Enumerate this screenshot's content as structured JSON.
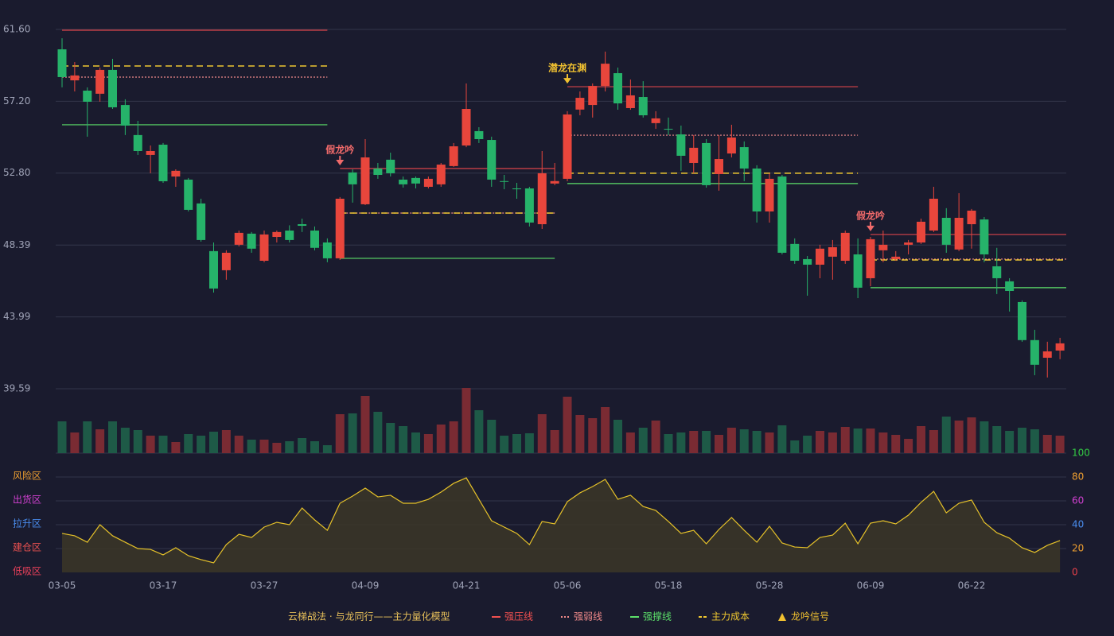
{
  "chart_data": {
    "type": "candlestick",
    "up_color": "#e8463c",
    "down_color": "#26b36a",
    "categories": [
      "03-05",
      null,
      null,
      null,
      null,
      null,
      null,
      null,
      "03-17",
      null,
      null,
      null,
      null,
      null,
      null,
      null,
      "03-27",
      null,
      null,
      null,
      null,
      null,
      null,
      null,
      "04-09",
      null,
      null,
      null,
      null,
      null,
      null,
      null,
      "04-21",
      null,
      null,
      null,
      null,
      null,
      null,
      null,
      "05-06",
      null,
      null,
      null,
      null,
      null,
      null,
      null,
      "05-18",
      null,
      null,
      null,
      null,
      null,
      null,
      null,
      "05-28",
      null,
      null,
      null,
      null,
      null,
      null,
      null,
      "06-09",
      null,
      null,
      null,
      null,
      null,
      null,
      null,
      "06-22",
      null,
      null,
      null,
      null,
      null,
      null,
      null
    ],
    "ohlc": [
      [
        60.38,
        61.06,
        58.05,
        58.68
      ],
      [
        58.48,
        59.6,
        57.8,
        58.78
      ],
      [
        57.85,
        58.05,
        55.03,
        57.17
      ],
      [
        57.66,
        59.26,
        57.17,
        59.12
      ],
      [
        59.12,
        59.8,
        56.73,
        56.83
      ],
      [
        56.97,
        57.32,
        55.13,
        55.71
      ],
      [
        55.13,
        56.0,
        53.91,
        54.15
      ],
      [
        53.91,
        54.49,
        52.79,
        54.15
      ],
      [
        54.54,
        54.64,
        52.2,
        52.3
      ],
      [
        52.59,
        53.03,
        51.96,
        52.94
      ],
      [
        52.4,
        52.5,
        50.45,
        50.55
      ],
      [
        50.94,
        51.23,
        48.6,
        48.7
      ],
      [
        48.02,
        48.55,
        45.48,
        45.73
      ],
      [
        46.85,
        48.07,
        46.27,
        47.92
      ],
      [
        48.41,
        49.28,
        48.31,
        49.14
      ],
      [
        49.09,
        49.19,
        47.92,
        48.17
      ],
      [
        47.43,
        49.28,
        47.34,
        49.04
      ],
      [
        48.89,
        49.28,
        48.55,
        49.19
      ],
      [
        49.28,
        49.6,
        48.55,
        48.7
      ],
      [
        49.67,
        50.01,
        49.19,
        49.57
      ],
      [
        49.28,
        49.53,
        48.07,
        48.22
      ],
      [
        48.55,
        48.8,
        47.34,
        47.58
      ],
      [
        47.58,
        51.33,
        47.48,
        51.23
      ],
      [
        52.84,
        53.03,
        50.99,
        52.11
      ],
      [
        50.89,
        54.88,
        50.84,
        53.76
      ],
      [
        53.08,
        53.42,
        52.45,
        52.69
      ],
      [
        53.62,
        54.05,
        52.59,
        52.79
      ],
      [
        52.4,
        52.59,
        51.91,
        52.11
      ],
      [
        52.5,
        52.59,
        51.86,
        52.16
      ],
      [
        51.96,
        52.59,
        51.86,
        52.45
      ],
      [
        52.11,
        53.42,
        51.96,
        53.32
      ],
      [
        53.23,
        54.64,
        53.18,
        54.44
      ],
      [
        54.49,
        58.29,
        54.39,
        56.73
      ],
      [
        55.37,
        55.61,
        54.64,
        54.88
      ],
      [
        54.83,
        55.03,
        51.96,
        52.4
      ],
      [
        52.31,
        52.69,
        51.81,
        52.26
      ],
      [
        51.86,
        52.2,
        51.23,
        51.81
      ],
      [
        51.86,
        51.96,
        49.53,
        49.77
      ],
      [
        49.67,
        54.15,
        49.38,
        52.79
      ],
      [
        52.16,
        53.42,
        52.06,
        52.31
      ],
      [
        52.45,
        56.59,
        52.3,
        56.39
      ],
      [
        56.69,
        57.8,
        56.34,
        57.41
      ],
      [
        56.97,
        58.29,
        56.2,
        58.14
      ],
      [
        58.14,
        60.24,
        57.8,
        59.5
      ],
      [
        58.92,
        59.26,
        56.68,
        57.07
      ],
      [
        56.78,
        58.53,
        56.68,
        57.56
      ],
      [
        57.46,
        58.43,
        56.2,
        56.34
      ],
      [
        55.86,
        56.59,
        55.51,
        56.15
      ],
      [
        55.51,
        56.2,
        55.13,
        55.47
      ],
      [
        55.17,
        55.71,
        52.94,
        53.86
      ],
      [
        53.42,
        55.13,
        52.79,
        54.35
      ],
      [
        54.64,
        54.88,
        51.91,
        52.06
      ],
      [
        52.74,
        55.13,
        51.72,
        53.66
      ],
      [
        54.0,
        55.76,
        53.76,
        54.98
      ],
      [
        54.39,
        54.74,
        52.3,
        53.08
      ],
      [
        53.08,
        53.28,
        49.77,
        50.45
      ],
      [
        50.45,
        52.79,
        49.77,
        52.45
      ],
      [
        52.59,
        52.69,
        47.82,
        47.92
      ],
      [
        48.46,
        48.8,
        47.24,
        47.43
      ],
      [
        47.53,
        47.72,
        45.29,
        47.19
      ],
      [
        47.19,
        48.41,
        46.36,
        48.17
      ],
      [
        47.68,
        48.7,
        46.27,
        48.26
      ],
      [
        47.43,
        49.28,
        47.24,
        49.14
      ],
      [
        47.82,
        48.8,
        45.14,
        45.78
      ],
      [
        46.36,
        48.89,
        45.87,
        48.75
      ],
      [
        48.07,
        49.28,
        47.34,
        48.41
      ],
      [
        47.53,
        48.02,
        47.43,
        47.68
      ],
      [
        48.41,
        48.7,
        47.82,
        48.55
      ],
      [
        48.55,
        50.01,
        48.46,
        49.82
      ],
      [
        49.28,
        51.96,
        49.19,
        51.23
      ],
      [
        50.06,
        50.65,
        47.92,
        48.41
      ],
      [
        48.12,
        51.57,
        48.02,
        50.06
      ],
      [
        49.67,
        50.6,
        48.17,
        50.5
      ],
      [
        49.96,
        50.11,
        47.34,
        47.82
      ],
      [
        47.09,
        48.22,
        45.39,
        46.36
      ],
      [
        46.17,
        46.36,
        44.32,
        45.58
      ],
      [
        44.9,
        45.0,
        42.47,
        42.57
      ],
      [
        42.57,
        43.2,
        40.42,
        41.06
      ],
      [
        41.49,
        42.47,
        40.28,
        41.88
      ],
      [
        41.93,
        42.71,
        41.4,
        42.37
      ]
    ],
    "ylim": [
      39.59,
      61.6
    ],
    "yticks": [
      39.59,
      43.99,
      48.39,
      {
        "value": 52.8,
        "label": "52.80"
      },
      {
        "value": 57.2,
        "label": "57.20"
      },
      {
        "value": 61.6,
        "label": "61.60"
      }
    ],
    "grid": true,
    "levels": [
      {
        "from": 0,
        "to": 21,
        "pressure": 61.55,
        "weak": 58.68,
        "cost": 59.36,
        "support": 55.76
      },
      {
        "from": 22,
        "to": 39,
        "pressure": 53.08,
        "weak": 50.35,
        "cost": 50.35,
        "support": 47.58
      },
      {
        "from": 40,
        "to": 63,
        "pressure": 58.09,
        "weak": 55.12,
        "cost": 52.79,
        "support": 52.16
      },
      {
        "from": 64,
        "to": 79,
        "pressure": 49.04,
        "weak": 47.53,
        "cost": 47.48,
        "support": 45.78
      }
    ],
    "level_colors": {
      "pressure": "#d9434a",
      "weak": "#f08a8a",
      "cost": "#f0c830",
      "support": "#5ce06a"
    },
    "signals": [
      {
        "index": 22,
        "label": "假龙吟",
        "color": "#f06a6a"
      },
      {
        "index": 40,
        "label": "潜龙在渊",
        "color": "#f0c030"
      },
      {
        "index": 64,
        "label": "假龙吟",
        "color": "#f06a6a"
      }
    ],
    "volume": {
      "up_color": "#7a2b33",
      "down_color": "#1e5a47",
      "values": [
        40,
        26,
        40,
        30,
        40,
        32,
        29,
        22,
        22,
        14,
        24,
        22,
        27,
        29,
        22,
        17,
        17,
        13,
        15,
        19,
        15,
        10,
        49,
        50,
        72,
        52,
        38,
        34,
        26,
        24,
        36,
        40,
        82,
        54,
        42,
        22,
        24,
        25,
        49,
        29,
        71,
        48,
        44,
        58,
        42,
        26,
        32,
        41,
        24,
        26,
        28,
        28,
        23,
        32,
        30,
        28,
        26,
        35,
        16,
        22,
        28,
        26,
        33,
        31,
        31,
        26,
        23,
        18,
        34,
        29,
        46,
        41,
        45,
        40,
        34,
        28,
        32,
        30,
        23,
        22
      ]
    },
    "indicator": {
      "color": "#e6c229",
      "fill": "#3a3528",
      "ylim": [
        0,
        100
      ],
      "yticks": [
        0,
        20,
        40,
        60,
        80,
        100
      ],
      "tick_colors": [
        "#e8404a",
        "#f0a030",
        "#4a8ef0",
        "#d040d0",
        "#f0a030",
        "#33cc44"
      ],
      "zones": [
        {
          "label": "低吸区",
          "value": 0,
          "color": "#e8405a"
        },
        {
          "label": "建仓区",
          "value": 20,
          "color": "#e85050"
        },
        {
          "label": "拉升区",
          "value": 40,
          "color": "#4a8ef0"
        },
        {
          "label": "出货区",
          "value": 60,
          "color": "#d040d0"
        },
        {
          "label": "风险区",
          "value": 80,
          "color": "#f0a030"
        }
      ],
      "values": [
        32.7,
        30.7,
        25.3,
        40,
        30.7,
        25.3,
        20,
        19.3,
        14.7,
        20.7,
        14,
        10.7,
        8,
        23.3,
        32,
        29.3,
        38,
        42,
        40,
        54,
        44,
        35.3,
        58,
        64,
        70.7,
        63.3,
        64.7,
        58,
        58,
        61.3,
        67.3,
        74.7,
        79.3,
        61.3,
        43.3,
        38,
        32.7,
        23.3,
        42.7,
        40.7,
        59.3,
        66.7,
        72,
        78,
        61.3,
        64.7,
        55.3,
        52,
        42.7,
        32.7,
        35.3,
        24,
        36,
        46,
        35.3,
        25.3,
        38.7,
        24.7,
        21.3,
        20.7,
        29.3,
        31.3,
        41.3,
        24,
        41.3,
        43.3,
        40.7,
        48,
        58.7,
        68,
        50,
        58,
        60.7,
        42,
        33.3,
        28.7,
        20.7,
        16.7,
        22.7,
        26.7
      ]
    },
    "legend": {
      "title": "云梯战法 · 与龙同行——主力量化模型",
      "title_color": "#e8c05a",
      "items": [
        {
          "name": "强压线",
          "color": "#f05050",
          "style": "solid"
        },
        {
          "name": "强弱线",
          "color": "#f08a8a",
          "style": "dotted"
        },
        {
          "name": "强撑线",
          "color": "#5ce06a",
          "style": "solid"
        },
        {
          "name": "主力成本",
          "color": "#f0c830",
          "style": "dashed"
        },
        {
          "name": "龙吟信号",
          "color": "#f0c030",
          "style": "triangle"
        }
      ]
    }
  }
}
